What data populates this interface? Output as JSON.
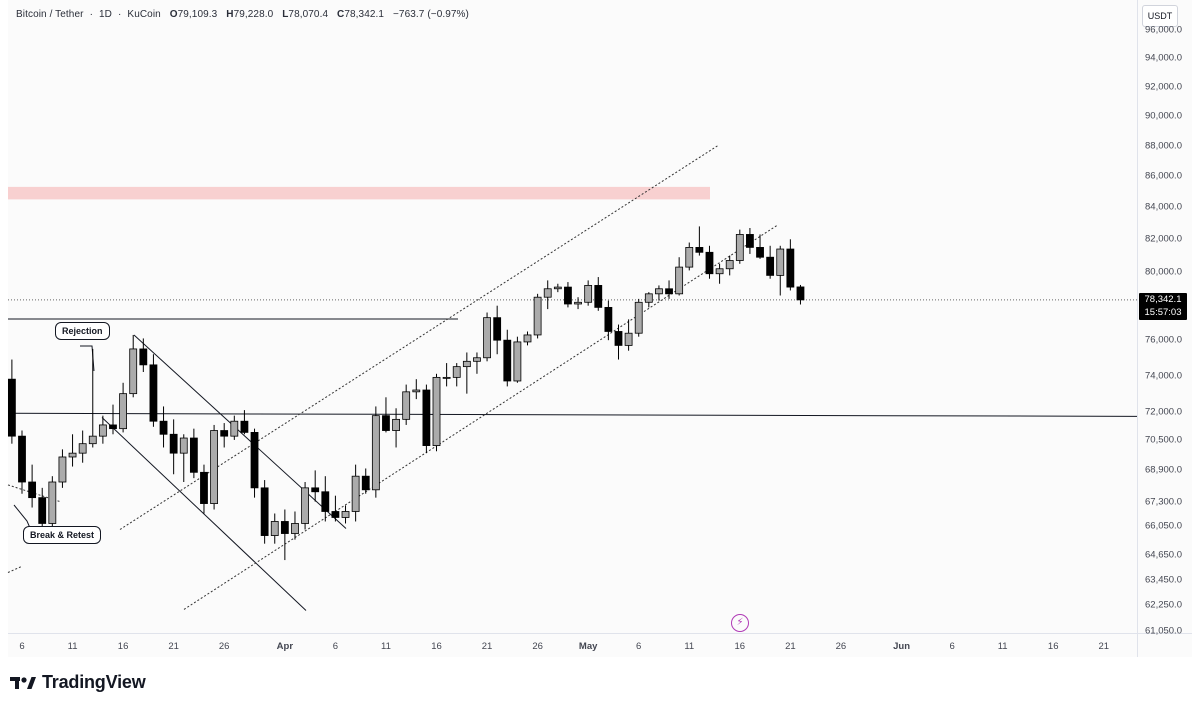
{
  "header": {
    "symbol": "Bitcoin / Tether",
    "interval": "1D",
    "exchange": "KuCoin",
    "open_label": "O",
    "open": "79,109.3",
    "high_label": "H",
    "high": "79,228.0",
    "low_label": "L",
    "low": "78,070.4",
    "close_label": "C",
    "close": "78,342.1",
    "change": "−763.7 (−0.97%)"
  },
  "currency": "USDT",
  "price_badge": {
    "price": "78,342.1",
    "countdown": "15:57:03"
  },
  "annotations": {
    "rejection": "Rejection",
    "break_retest": "Break & Retest"
  },
  "brand": "TradingView",
  "icons": {
    "logo": "tradingview-logo-icon",
    "events": "lightning-bolt-icon"
  },
  "colors": {
    "up_body": "#ababab",
    "down_body": "#000000",
    "zone": "#f8d0d0",
    "background": "#fbfbfb"
  },
  "chart_data": {
    "type": "candlestick",
    "y_scale": "log",
    "y_range": [
      61050,
      96000
    ],
    "y_ticks": [
      {
        "label": "96,000.0",
        "v": 96000
      },
      {
        "label": "94,000.0",
        "v": 94000
      },
      {
        "label": "92,000.0",
        "v": 92000
      },
      {
        "label": "90,000.0",
        "v": 90000
      },
      {
        "label": "88,000.0",
        "v": 88000
      },
      {
        "label": "86,000.0",
        "v": 86000
      },
      {
        "label": "84,000.0",
        "v": 84000
      },
      {
        "label": "82,000.0",
        "v": 82000
      },
      {
        "label": "80,000.0",
        "v": 80000
      },
      {
        "label": "76,000.0",
        "v": 76000
      },
      {
        "label": "74,000.0",
        "v": 74000
      },
      {
        "label": "72,000.0",
        "v": 72000
      },
      {
        "label": "70,500.0",
        "v": 70500
      },
      {
        "label": "68,900.0",
        "v": 68900
      },
      {
        "label": "67,300.0",
        "v": 67300
      },
      {
        "label": "66,050.0",
        "v": 66050
      },
      {
        "label": "64,650.0",
        "v": 64650
      },
      {
        "label": "63,450.0",
        "v": 63450
      },
      {
        "label": "62,250.0",
        "v": 62250
      },
      {
        "label": "61,050.0",
        "v": 61050
      }
    ],
    "x_ticks": [
      {
        "label": "6",
        "d": "2024-03-06"
      },
      {
        "label": "11",
        "d": "2024-03-11"
      },
      {
        "label": "16",
        "d": "2024-03-16"
      },
      {
        "label": "21",
        "d": "2024-03-21"
      },
      {
        "label": "26",
        "d": "2024-03-26"
      },
      {
        "label": "Apr",
        "d": "2024-04-01"
      },
      {
        "label": "6",
        "d": "2024-04-06"
      },
      {
        "label": "11",
        "d": "2024-04-11"
      },
      {
        "label": "16",
        "d": "2024-04-16"
      },
      {
        "label": "21",
        "d": "2024-04-21"
      },
      {
        "label": "26",
        "d": "2024-04-26"
      },
      {
        "label": "May",
        "d": "2024-05-01"
      },
      {
        "label": "6",
        "d": "2024-05-06"
      },
      {
        "label": "11",
        "d": "2024-05-11"
      },
      {
        "label": "16",
        "d": "2024-05-16"
      },
      {
        "label": "21",
        "d": "2024-05-21"
      },
      {
        "label": "26",
        "d": "2024-05-26"
      },
      {
        "label": "Jun",
        "d": "2024-06-01"
      },
      {
        "label": "6",
        "d": "2024-06-06"
      },
      {
        "label": "11",
        "d": "2024-06-11"
      },
      {
        "label": "16",
        "d": "2024-06-16"
      },
      {
        "label": "21",
        "d": "2024-06-21"
      }
    ],
    "candles": [
      {
        "d": "2024-03-05",
        "o": 73800,
        "h": 74900,
        "l": 70300,
        "c": 70700
      },
      {
        "d": "2024-03-06",
        "o": 70700,
        "h": 71000,
        "l": 67700,
        "c": 68300
      },
      {
        "d": "2024-03-07",
        "o": 68300,
        "h": 69200,
        "l": 67000,
        "c": 67500
      },
      {
        "d": "2024-03-08",
        "o": 67500,
        "h": 68000,
        "l": 65500,
        "c": 66200
      },
      {
        "d": "2024-03-09",
        "o": 66200,
        "h": 68600,
        "l": 65700,
        "c": 68300
      },
      {
        "d": "2024-03-10",
        "o": 68300,
        "h": 70000,
        "l": 68000,
        "c": 69600
      },
      {
        "d": "2024-03-11",
        "o": 69600,
        "h": 70800,
        "l": 69100,
        "c": 69800
      },
      {
        "d": "2024-03-12",
        "o": 69800,
        "h": 71000,
        "l": 69300,
        "c": 70300
      },
      {
        "d": "2024-03-13",
        "o": 70300,
        "h": 75500,
        "l": 70100,
        "c": 70700
      },
      {
        "d": "2024-03-14",
        "o": 70700,
        "h": 71800,
        "l": 70300,
        "c": 71300
      },
      {
        "d": "2024-03-15",
        "o": 71300,
        "h": 72400,
        "l": 70800,
        "c": 71100
      },
      {
        "d": "2024-03-16",
        "o": 71100,
        "h": 73600,
        "l": 70900,
        "c": 73000
      },
      {
        "d": "2024-03-17",
        "o": 73000,
        "h": 76300,
        "l": 72800,
        "c": 75500
      },
      {
        "d": "2024-03-18",
        "o": 75500,
        "h": 76100,
        "l": 74200,
        "c": 74600
      },
      {
        "d": "2024-03-19",
        "o": 74600,
        "h": 75200,
        "l": 71200,
        "c": 71500
      },
      {
        "d": "2024-03-20",
        "o": 71500,
        "h": 72300,
        "l": 70100,
        "c": 70800
      },
      {
        "d": "2024-03-21",
        "o": 70800,
        "h": 71600,
        "l": 68700,
        "c": 69800
      },
      {
        "d": "2024-03-22",
        "o": 69800,
        "h": 70800,
        "l": 68300,
        "c": 70600
      },
      {
        "d": "2024-03-23",
        "o": 70600,
        "h": 71100,
        "l": 68500,
        "c": 68800
      },
      {
        "d": "2024-03-24",
        "o": 68800,
        "h": 69200,
        "l": 66700,
        "c": 67200
      },
      {
        "d": "2024-03-25",
        "o": 67200,
        "h": 71300,
        "l": 66900,
        "c": 71000
      },
      {
        "d": "2024-03-26",
        "o": 71000,
        "h": 71400,
        "l": 70100,
        "c": 70700
      },
      {
        "d": "2024-03-27",
        "o": 70700,
        "h": 71800,
        "l": 70500,
        "c": 71500
      },
      {
        "d": "2024-03-28",
        "o": 71500,
        "h": 72100,
        "l": 70800,
        "c": 70900
      },
      {
        "d": "2024-03-29",
        "o": 70900,
        "h": 71100,
        "l": 67500,
        "c": 68000
      },
      {
        "d": "2024-03-30",
        "o": 68000,
        "h": 68400,
        "l": 65200,
        "c": 65600
      },
      {
        "d": "2024-03-31",
        "o": 65600,
        "h": 66700,
        "l": 65200,
        "c": 66300
      },
      {
        "d": "2024-04-01",
        "o": 66300,
        "h": 66900,
        "l": 64400,
        "c": 65700
      },
      {
        "d": "2024-04-02",
        "o": 65700,
        "h": 66800,
        "l": 65400,
        "c": 66200
      },
      {
        "d": "2024-04-03",
        "o": 66200,
        "h": 68300,
        "l": 65900,
        "c": 68000
      },
      {
        "d": "2024-04-04",
        "o": 68000,
        "h": 68900,
        "l": 67300,
        "c": 67800
      },
      {
        "d": "2024-04-05",
        "o": 67800,
        "h": 68600,
        "l": 66300,
        "c": 66800
      },
      {
        "d": "2024-04-06",
        "o": 66800,
        "h": 67600,
        "l": 66300,
        "c": 66500
      },
      {
        "d": "2024-04-07",
        "o": 66500,
        "h": 67100,
        "l": 66200,
        "c": 66800
      },
      {
        "d": "2024-04-08",
        "o": 66800,
        "h": 69200,
        "l": 66300,
        "c": 68600
      },
      {
        "d": "2024-04-09",
        "o": 68600,
        "h": 69000,
        "l": 67700,
        "c": 67900
      },
      {
        "d": "2024-04-10",
        "o": 67900,
        "h": 72300,
        "l": 67500,
        "c": 71800
      },
      {
        "d": "2024-04-11",
        "o": 71800,
        "h": 72800,
        "l": 70900,
        "c": 71000
      },
      {
        "d": "2024-04-12",
        "o": 71000,
        "h": 72200,
        "l": 70100,
        "c": 71600
      },
      {
        "d": "2024-04-13",
        "o": 71600,
        "h": 73500,
        "l": 71300,
        "c": 73100
      },
      {
        "d": "2024-04-14",
        "o": 73100,
        "h": 73800,
        "l": 72700,
        "c": 73200
      },
      {
        "d": "2024-04-15",
        "o": 73200,
        "h": 73500,
        "l": 69800,
        "c": 70200
      },
      {
        "d": "2024-04-16",
        "o": 70200,
        "h": 74100,
        "l": 69900,
        "c": 73900
      },
      {
        "d": "2024-04-17",
        "o": 73900,
        "h": 74700,
        "l": 73400,
        "c": 73900
      },
      {
        "d": "2024-04-18",
        "o": 73900,
        "h": 74700,
        "l": 73400,
        "c": 74500
      },
      {
        "d": "2024-04-19",
        "o": 74500,
        "h": 75300,
        "l": 73000,
        "c": 74800
      },
      {
        "d": "2024-04-20",
        "o": 74800,
        "h": 75300,
        "l": 74100,
        "c": 75000
      },
      {
        "d": "2024-04-21",
        "o": 75000,
        "h": 77600,
        "l": 74800,
        "c": 77300
      },
      {
        "d": "2024-04-22",
        "o": 77300,
        "h": 78000,
        "l": 75200,
        "c": 76000
      },
      {
        "d": "2024-04-23",
        "o": 76000,
        "h": 76600,
        "l": 73400,
        "c": 73700
      },
      {
        "d": "2024-04-24",
        "o": 73700,
        "h": 76200,
        "l": 73600,
        "c": 75900
      },
      {
        "d": "2024-04-25",
        "o": 75900,
        "h": 76500,
        "l": 75700,
        "c": 76300
      },
      {
        "d": "2024-04-26",
        "o": 76300,
        "h": 78700,
        "l": 76100,
        "c": 78500
      },
      {
        "d": "2024-04-27",
        "o": 78500,
        "h": 79500,
        "l": 77800,
        "c": 79000
      },
      {
        "d": "2024-04-28",
        "o": 79000,
        "h": 79300,
        "l": 78800,
        "c": 79100
      },
      {
        "d": "2024-04-29",
        "o": 79100,
        "h": 79400,
        "l": 77900,
        "c": 78100
      },
      {
        "d": "2024-04-30",
        "o": 78100,
        "h": 78500,
        "l": 77800,
        "c": 78200
      },
      {
        "d": "2024-05-01",
        "o": 78200,
        "h": 79500,
        "l": 78000,
        "c": 79200
      },
      {
        "d": "2024-05-02",
        "o": 79200,
        "h": 79700,
        "l": 77700,
        "c": 77900
      },
      {
        "d": "2024-05-03",
        "o": 77900,
        "h": 78300,
        "l": 76000,
        "c": 76500
      },
      {
        "d": "2024-05-04",
        "o": 76500,
        "h": 76900,
        "l": 74900,
        "c": 75700
      },
      {
        "d": "2024-05-05",
        "o": 75700,
        "h": 77200,
        "l": 75400,
        "c": 76400
      },
      {
        "d": "2024-05-06",
        "o": 76400,
        "h": 78400,
        "l": 76200,
        "c": 78200
      },
      {
        "d": "2024-05-07",
        "o": 78200,
        "h": 78800,
        "l": 77900,
        "c": 78700
      },
      {
        "d": "2024-05-08",
        "o": 78700,
        "h": 79200,
        "l": 78300,
        "c": 79000
      },
      {
        "d": "2024-05-09",
        "o": 79000,
        "h": 79500,
        "l": 78400,
        "c": 78700
      },
      {
        "d": "2024-05-10",
        "o": 78700,
        "h": 80900,
        "l": 78600,
        "c": 80300
      },
      {
        "d": "2024-05-11",
        "o": 80300,
        "h": 81800,
        "l": 80100,
        "c": 81500
      },
      {
        "d": "2024-05-12",
        "o": 81500,
        "h": 82800,
        "l": 81000,
        "c": 81200
      },
      {
        "d": "2024-05-13",
        "o": 81200,
        "h": 81600,
        "l": 79600,
        "c": 79900
      },
      {
        "d": "2024-05-14",
        "o": 79900,
        "h": 80500,
        "l": 79300,
        "c": 80200
      },
      {
        "d": "2024-05-15",
        "o": 80200,
        "h": 81000,
        "l": 79800,
        "c": 80700
      },
      {
        "d": "2024-05-16",
        "o": 80700,
        "h": 82600,
        "l": 80500,
        "c": 82300
      },
      {
        "d": "2024-05-17",
        "o": 82300,
        "h": 82700,
        "l": 81100,
        "c": 81500
      },
      {
        "d": "2024-05-18",
        "o": 81500,
        "h": 82300,
        "l": 80800,
        "c": 80900
      },
      {
        "d": "2024-05-19",
        "o": 80900,
        "h": 81600,
        "l": 79600,
        "c": 79800
      },
      {
        "d": "2024-05-20",
        "o": 79800,
        "h": 81600,
        "l": 78600,
        "c": 81400
      },
      {
        "d": "2024-05-21",
        "o": 81400,
        "h": 82000,
        "l": 78900,
        "c": 79100
      },
      {
        "d": "2024-05-22",
        "o": 79109.3,
        "h": 79228.0,
        "l": 78070.4,
        "c": 78342.1
      }
    ]
  }
}
